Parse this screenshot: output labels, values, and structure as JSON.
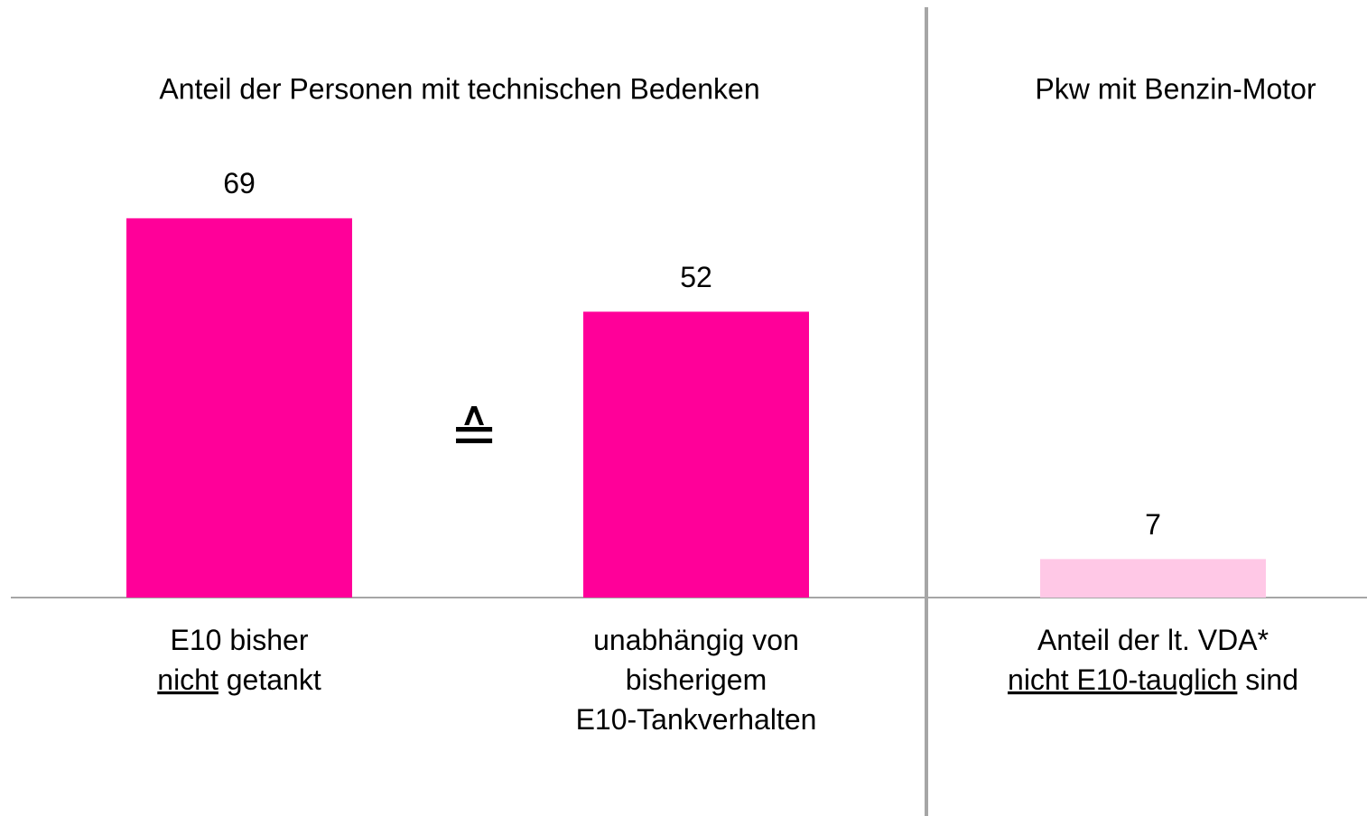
{
  "chart_data": [
    {
      "type": "bar",
      "title": "Anteil der Personen mit technischen Bedenken",
      "annotation": "≙",
      "categories": [
        [
          [
            "E10 bisher"
          ],
          [
            {
              "text": "nicht",
              "underline": true
            },
            "getankt"
          ]
        ],
        [
          [
            "unabhängig von"
          ],
          [
            "bisherigem"
          ],
          [
            "E10-Tankverhalten"
          ]
        ]
      ],
      "values": [
        69,
        52
      ],
      "color": "#ff0099",
      "ylim": [
        0,
        100
      ]
    },
    {
      "type": "bar",
      "title": "Pkw mit Benzin-Motor",
      "categories": [
        [
          [
            "Anteil der lt. VDA*"
          ],
          [
            {
              "text": "nicht E10-tauglich",
              "underline": true
            },
            "sind"
          ]
        ]
      ],
      "values": [
        7
      ],
      "color": "#ffc8e6",
      "ylim": [
        0,
        100
      ]
    }
  ]
}
